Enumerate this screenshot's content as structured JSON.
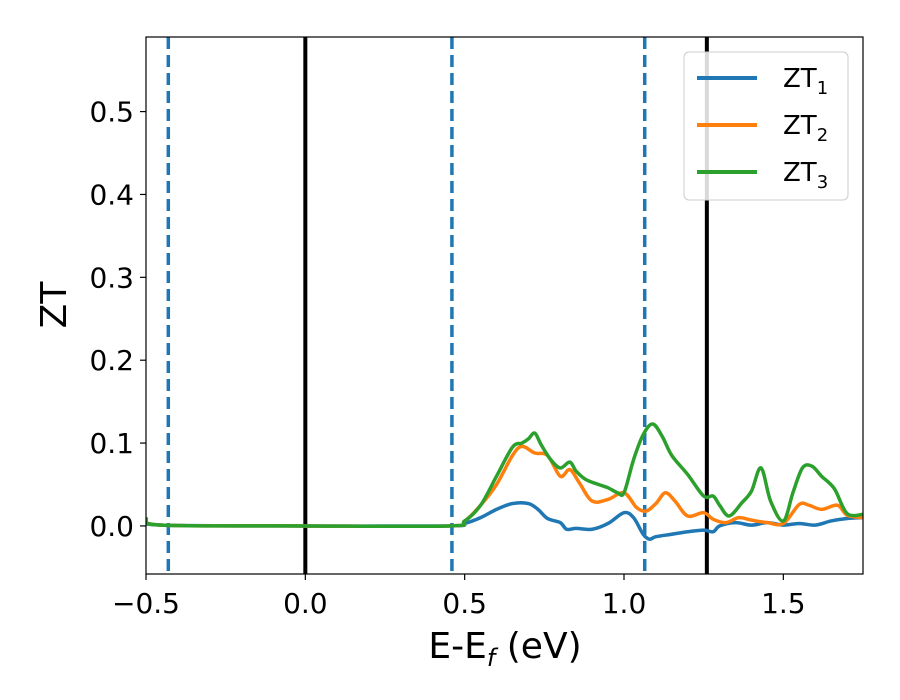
{
  "chart_data": {
    "type": "line",
    "title": "",
    "xlabel": "E-E",
    "xlabel_sub": "f",
    "xlabel_unit": " (eV)",
    "ylabel": "ZT",
    "xlim": [
      -0.5,
      1.75
    ],
    "ylim": [
      -0.058,
      0.59
    ],
    "xticks": [
      -0.5,
      0.0,
      0.5,
      1.0,
      1.5
    ],
    "xtick_labels": [
      "−0.5",
      "0.0",
      "0.5",
      "1.0",
      "1.5"
    ],
    "yticks": [
      0.0,
      0.1,
      0.2,
      0.3,
      0.4,
      0.5
    ],
    "ytick_labels": [
      "0.0",
      "0.1",
      "0.2",
      "0.3",
      "0.4",
      "0.5"
    ],
    "grid": false,
    "legend_position": "top-right",
    "vlines": [
      {
        "x": -0.43,
        "style": "dashed",
        "color": "#1f77b4"
      },
      {
        "x": 0.0,
        "style": "solid",
        "color": "#000000"
      },
      {
        "x": 0.46,
        "style": "dashed",
        "color": "#1f77b4"
      },
      {
        "x": 1.065,
        "style": "dashed",
        "color": "#1f77b4"
      },
      {
        "x": 1.26,
        "style": "solid",
        "color": "#000000"
      }
    ],
    "series": [
      {
        "name": "ZT",
        "name_sub": "1",
        "color": "#1f77b4",
        "x": [
          -0.5,
          -0.45,
          0.0,
          0.45,
          0.5,
          0.55,
          0.6,
          0.65,
          0.7,
          0.73,
          0.76,
          0.8,
          0.82,
          0.85,
          0.9,
          0.95,
          1.0,
          1.03,
          1.06,
          1.08,
          1.1,
          1.15,
          1.2,
          1.25,
          1.28,
          1.3,
          1.35,
          1.4,
          1.45,
          1.5,
          1.55,
          1.6,
          1.65,
          1.7,
          1.75
        ],
        "y": [
          0.006,
          0.001,
          0.0,
          0.0,
          0.003,
          0.01,
          0.02,
          0.027,
          0.027,
          0.02,
          0.009,
          0.004,
          -0.004,
          -0.003,
          -0.004,
          0.003,
          0.016,
          0.01,
          -0.01,
          -0.016,
          -0.013,
          -0.01,
          -0.007,
          -0.005,
          -0.007,
          0.0,
          0.004,
          0.001,
          0.004,
          0.001,
          0.003,
          0.001,
          0.006,
          0.009,
          0.01
        ]
      },
      {
        "name": "ZT",
        "name_sub": "2",
        "color": "#ff7f0e",
        "x": [
          -0.5,
          -0.45,
          0.0,
          0.45,
          0.5,
          0.55,
          0.6,
          0.65,
          0.68,
          0.72,
          0.76,
          0.8,
          0.83,
          0.86,
          0.9,
          0.95,
          1.0,
          1.04,
          1.07,
          1.1,
          1.13,
          1.16,
          1.2,
          1.25,
          1.28,
          1.32,
          1.36,
          1.4,
          1.45,
          1.5,
          1.55,
          1.58,
          1.62,
          1.67,
          1.7,
          1.75
        ],
        "y": [
          0.009,
          0.001,
          0.0,
          0.0,
          0.006,
          0.025,
          0.05,
          0.085,
          0.096,
          0.088,
          0.085,
          0.06,
          0.068,
          0.052,
          0.03,
          0.032,
          0.04,
          0.022,
          0.018,
          0.027,
          0.04,
          0.03,
          0.012,
          0.016,
          0.008,
          0.004,
          0.01,
          0.007,
          0.004,
          0.003,
          0.026,
          0.025,
          0.02,
          0.025,
          0.013,
          0.01
        ]
      },
      {
        "name": "ZT",
        "name_sub": "3",
        "color": "#2ca02c",
        "x": [
          -0.5,
          -0.45,
          0.0,
          0.45,
          0.5,
          0.55,
          0.6,
          0.65,
          0.68,
          0.7,
          0.72,
          0.74,
          0.77,
          0.8,
          0.83,
          0.85,
          0.88,
          0.92,
          0.95,
          0.98,
          1.0,
          1.03,
          1.06,
          1.09,
          1.12,
          1.15,
          1.2,
          1.25,
          1.28,
          1.3,
          1.33,
          1.37,
          1.4,
          1.43,
          1.46,
          1.5,
          1.53,
          1.56,
          1.59,
          1.62,
          1.66,
          1.7,
          1.75
        ],
        "y": [
          0.009,
          0.001,
          0.0,
          0.0,
          0.006,
          0.025,
          0.06,
          0.095,
          0.1,
          0.105,
          0.112,
          0.098,
          0.08,
          0.07,
          0.077,
          0.066,
          0.056,
          0.05,
          0.046,
          0.04,
          0.04,
          0.08,
          0.11,
          0.123,
          0.108,
          0.085,
          0.062,
          0.036,
          0.036,
          0.025,
          0.012,
          0.028,
          0.042,
          0.07,
          0.03,
          0.006,
          0.04,
          0.07,
          0.072,
          0.06,
          0.045,
          0.015,
          0.014
        ]
      }
    ]
  }
}
